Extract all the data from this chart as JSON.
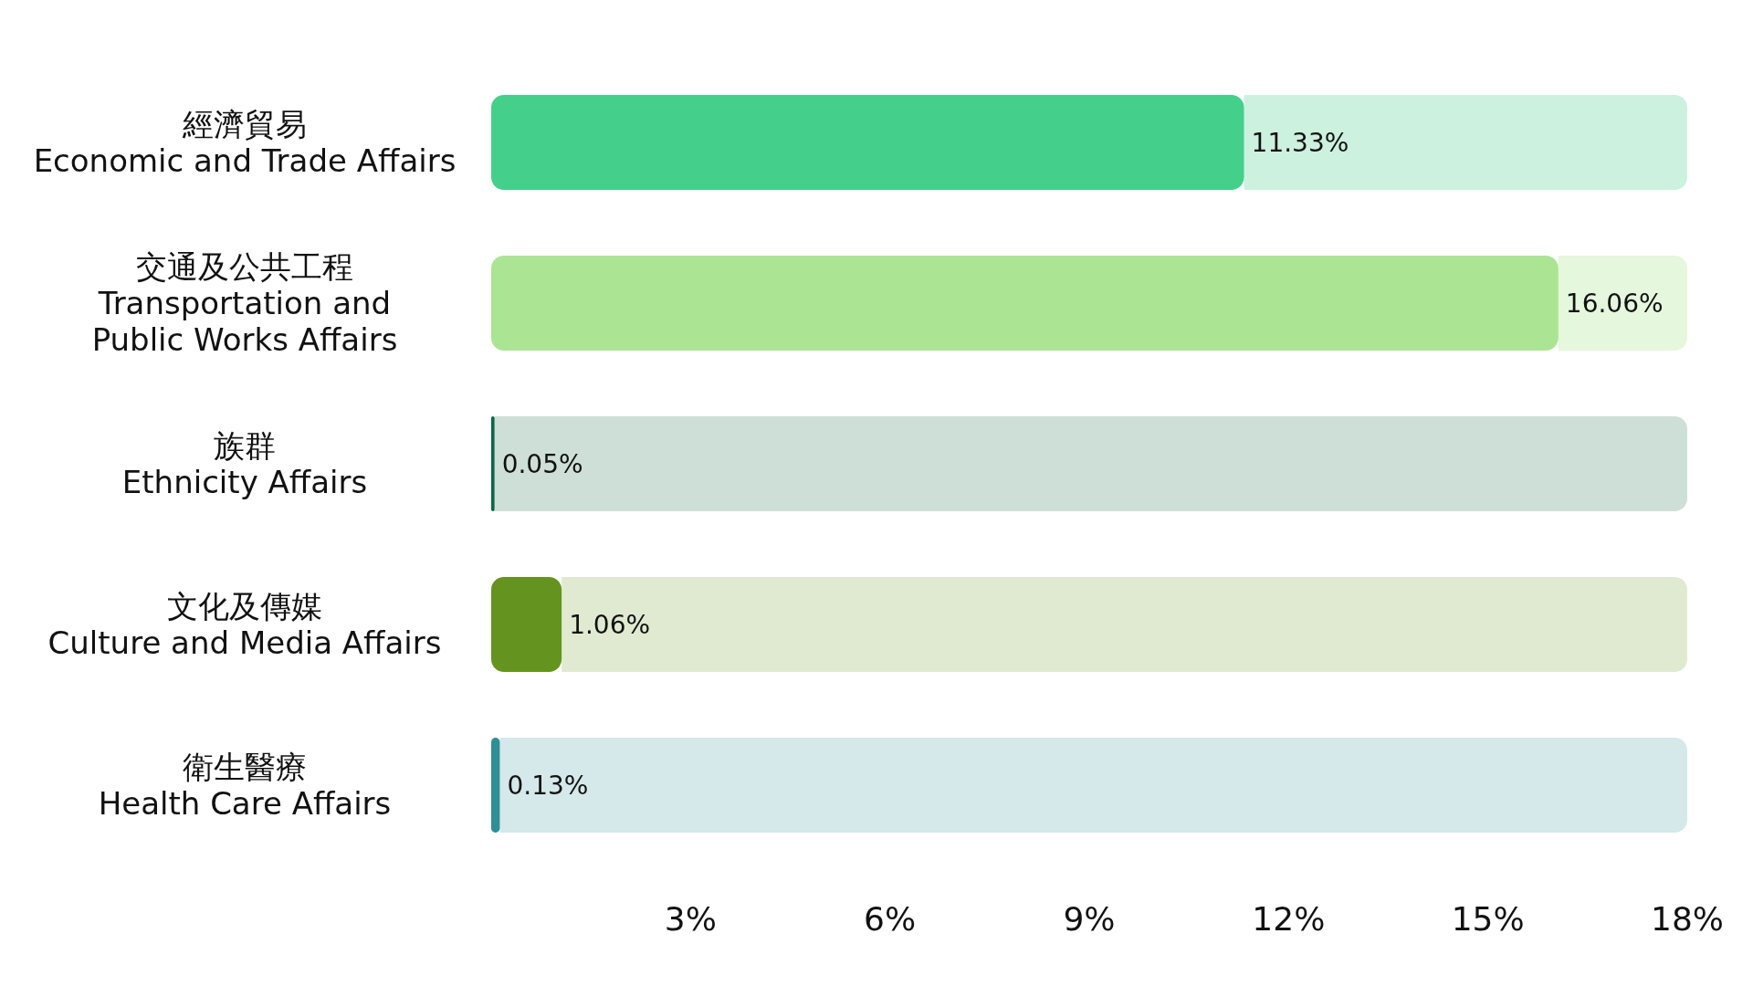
{
  "chart_data": {
    "type": "bar",
    "orientation": "horizontal",
    "stacked": true,
    "categories": [
      "經濟貿易\nEconomic and Trade Affairs",
      "交通及公共工程\nTransportation and\nPublic Works Affairs",
      "族群\nEthnicity Affairs",
      "文化及傳媒\nCulture and Media Affairs",
      "衛生醫療\nHealth Care Affairs"
    ],
    "series": [
      {
        "values": [
          11.33,
          16.06,
          0.05,
          1.06,
          0.13
        ],
        "colors": [
          "#44d08a",
          "#abe593",
          "#0b6648",
          "#64941f",
          "#2f8f96"
        ],
        "value_labels": [
          "11.33%",
          "16.06%",
          "0.05%",
          "1.06%",
          "0.13%"
        ]
      },
      {
        "values": [
          6.67,
          1.94,
          17.95,
          16.94,
          17.87
        ],
        "colors": [
          "#ccf1de",
          "#e5f7dd",
          "#cedfd8",
          "#e0ead1",
          "#d5e8ea"
        ]
      }
    ],
    "xlim": [
      0,
      18
    ],
    "xticks": [
      {
        "value": 3,
        "label": "3%"
      },
      {
        "value": 6,
        "label": "6%"
      },
      {
        "value": 9,
        "label": "9%"
      },
      {
        "value": 12,
        "label": "12%"
      },
      {
        "value": 15,
        "label": "15%"
      },
      {
        "value": 18,
        "label": "18%"
      }
    ],
    "grid": false
  }
}
